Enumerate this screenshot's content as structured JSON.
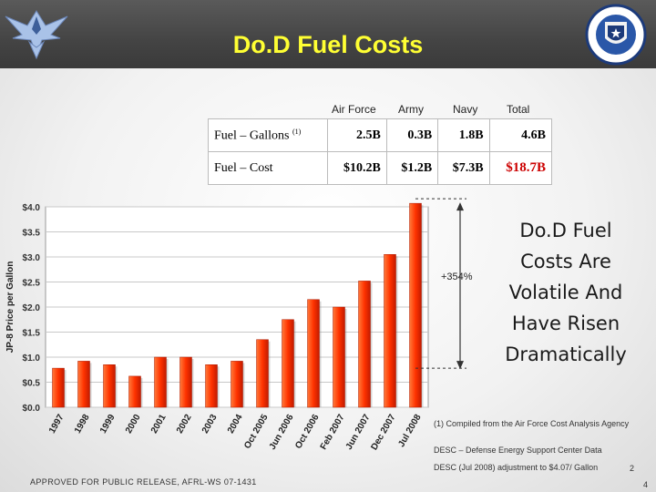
{
  "title": "Do.D Fuel Costs",
  "logos": {
    "left": "air-force-wings-logo",
    "right": "afrl-shield-logo"
  },
  "table": {
    "headers": [
      "Air Force",
      "Army",
      "Navy",
      "Total"
    ],
    "rows": [
      {
        "label": "Fuel – Gallons",
        "footnote": "(1)",
        "values": [
          "2.5B",
          "0.3B",
          "1.8B",
          "4.6B"
        ]
      },
      {
        "label": "Fuel – Cost",
        "values": [
          "$10.2B",
          "$1.2B",
          "$7.3B",
          "$18.7B"
        ]
      }
    ],
    "highlight_color": "#cc0000"
  },
  "callout": [
    "Do.D Fuel",
    "Costs Are",
    "Volatile And",
    "Have Risen",
    "Dramatically"
  ],
  "increase_label": "+354%",
  "notes": [
    "(1) Compiled from the Air Force Cost Analysis Agency",
    "DESC – Defense Energy Support Center Data",
    "DESC (Jul 2008) adjustment to $4.07/ Gallon"
  ],
  "release": "APPROVED FOR PUBLIC RELEASE, AFRL-WS 07-1431",
  "page_numbers": [
    "2",
    "4"
  ],
  "chart_data": {
    "type": "bar",
    "ylabel": "JP-8 Price per Gallon",
    "ylim": [
      0,
      4.0
    ],
    "yticks": [
      "$0.0",
      "$0.5",
      "$1.0",
      "$1.5",
      "$2.0",
      "$2.5",
      "$3.0",
      "$3.5",
      "$4.0"
    ],
    "categories": [
      "1997",
      "1998",
      "1999",
      "2000",
      "2001",
      "2002",
      "2003",
      "2004",
      "Oct 2005",
      "Jun 2006",
      "Oct 2006",
      "Feb 2007",
      "Jun 2007",
      "Dec 2007",
      "Jul 2008"
    ],
    "values": [
      0.78,
      0.92,
      0.85,
      0.62,
      1.0,
      1.0,
      0.85,
      0.92,
      1.35,
      1.75,
      2.15,
      2.0,
      2.52,
      3.05,
      4.07
    ],
    "bar_color": "#dd2200",
    "grid": true
  }
}
